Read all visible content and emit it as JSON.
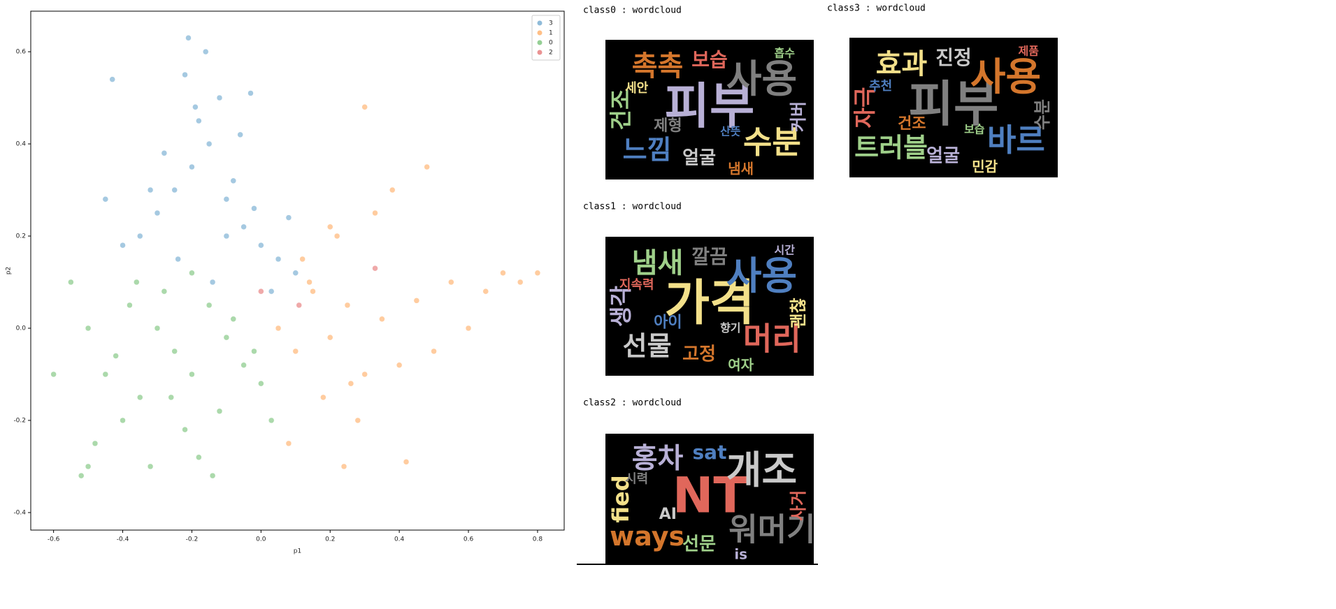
{
  "chart_data": {
    "type": "scatter",
    "x_label": "p1",
    "y_label": "p2",
    "xlim": [
      -0.666,
      0.877
    ],
    "ylim": [
      -0.438,
      0.688
    ],
    "xticks": [
      -0.6,
      -0.4,
      -0.2,
      {
        "value": 0,
        "label": "0.0"
      },
      0.2,
      0.4,
      0.6,
      0.8
    ],
    "yticks": [
      -0.4,
      -0.2,
      {
        "value": 0,
        "label": "0.0"
      },
      0.2,
      0.4,
      0.6
    ],
    "legend": "upper right",
    "series": [
      {
        "name": "3",
        "color": "#1f77b4",
        "x": [
          -0.25,
          -0.2,
          -0.15,
          -0.1,
          -0.05,
          0.0,
          0.05,
          0.1,
          -0.3,
          -0.35,
          -0.4,
          -0.18,
          -0.12,
          -0.08,
          -0.22,
          -0.28,
          -0.02,
          0.03,
          -0.16,
          -0.06,
          -0.24,
          -0.14,
          -0.32,
          0.08,
          -0.45,
          -0.19,
          -0.43,
          -0.21,
          -0.03,
          -0.1
        ],
        "values": [
          0.3,
          0.35,
          0.4,
          0.28,
          0.22,
          0.18,
          0.15,
          0.12,
          0.25,
          0.2,
          0.18,
          0.45,
          0.5,
          0.32,
          0.55,
          0.38,
          0.26,
          0.08,
          0.6,
          0.42,
          0.15,
          0.1,
          0.3,
          0.24,
          0.28,
          0.48,
          0.54,
          0.63,
          0.51,
          0.2
        ]
      },
      {
        "name": "1",
        "color": "#ff7f0e",
        "x": [
          0.05,
          0.1,
          0.15,
          0.2,
          0.25,
          0.3,
          0.35,
          0.4,
          0.45,
          0.5,
          0.55,
          0.6,
          0.65,
          0.7,
          0.75,
          0.8,
          0.12,
          0.18,
          0.22,
          0.28,
          0.33,
          0.38,
          0.08,
          0.14,
          0.24,
          0.42,
          0.3,
          0.2,
          0.26,
          0.48
        ],
        "values": [
          0.0,
          -0.05,
          0.08,
          -0.02,
          0.05,
          -0.1,
          0.02,
          -0.08,
          0.06,
          -0.05,
          0.1,
          0.0,
          0.08,
          0.12,
          0.1,
          0.12,
          0.15,
          -0.15,
          0.2,
          -0.2,
          0.25,
          0.3,
          -0.25,
          0.1,
          -0.3,
          -0.29,
          0.48,
          0.22,
          -0.12,
          0.35
        ]
      },
      {
        "name": "0",
        "color": "#2ca02c",
        "x": [
          -0.3,
          -0.25,
          -0.2,
          -0.15,
          -0.1,
          -0.05,
          0.0,
          -0.35,
          -0.4,
          -0.45,
          -0.5,
          -0.28,
          -0.22,
          -0.12,
          -0.08,
          -0.18,
          -0.32,
          -0.38,
          -0.02,
          0.03,
          -0.55,
          -0.6,
          -0.48,
          -0.26,
          -0.14,
          -0.42,
          -0.36,
          -0.2,
          -0.5,
          -0.52
        ],
        "values": [
          0.0,
          -0.05,
          -0.1,
          0.05,
          -0.02,
          -0.08,
          -0.12,
          -0.15,
          -0.2,
          -0.1,
          0.0,
          0.08,
          -0.22,
          -0.18,
          0.02,
          -0.28,
          -0.3,
          0.05,
          -0.05,
          -0.2,
          0.1,
          -0.1,
          -0.25,
          -0.15,
          -0.32,
          -0.06,
          0.1,
          0.12,
          -0.3,
          -0.32
        ]
      },
      {
        "name": "2",
        "color": "#d62728",
        "x": [
          0.11,
          0.0,
          0.33
        ],
        "values": [
          0.05,
          0.08,
          0.13
        ]
      }
    ]
  },
  "wordclouds": [
    {
      "title": "class0 : wordcloud",
      "words": [
        "피부",
        "사용",
        "촉촉",
        "수분",
        "느낌",
        "건조",
        "보습",
        "얼굴",
        "커버",
        "제형",
        "냄새",
        "세안",
        "산뜻",
        "흡수"
      ]
    },
    {
      "title": "class1 : wordcloud",
      "words": [
        "가격",
        "사용",
        "냄새",
        "머리",
        "선물",
        "생각",
        "깔끔",
        "고정",
        "괜찮",
        "아이",
        "여자",
        "지속력",
        "향기",
        "시간"
      ]
    },
    {
      "title": "class2 : wordcloud",
      "words": [
        "NT",
        "개조",
        "홍차",
        "워머기",
        "ways",
        "fied",
        "sat",
        "선문",
        "사거",
        "AI",
        "is",
        "시력"
      ]
    },
    {
      "title": "class3 : wordcloud",
      "words": [
        "피부",
        "사용",
        "효과",
        "바르",
        "트러블",
        "자극",
        "진정",
        "얼굴",
        "수분",
        "건조",
        "민감",
        "추천",
        "보습",
        "제품"
      ]
    }
  ]
}
